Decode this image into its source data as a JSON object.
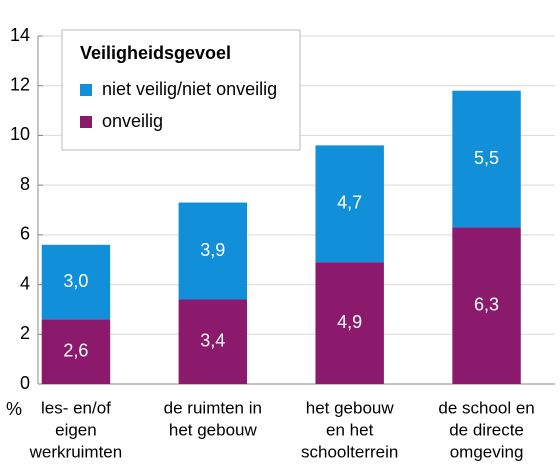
{
  "chart_data": {
    "type": "stacked_bar",
    "y_axis_label": "%",
    "categories": [
      [
        "les- en/of",
        "eigen",
        "werkruimten"
      ],
      [
        "de ruimten in",
        "het gebouw"
      ],
      [
        "het gebouw",
        "en het",
        "schoolterrein"
      ],
      [
        "de school en",
        "de directe",
        "omgeving"
      ]
    ],
    "series": [
      {
        "name": "onveilig",
        "color": "#8b1a6c",
        "values": [
          2.6,
          3.4,
          4.9,
          6.3
        ],
        "value_labels": [
          "2,6",
          "3,4",
          "4,9",
          "6,3"
        ]
      },
      {
        "name": "niet veilig/niet onveilig",
        "color": "#118fd8",
        "values": [
          3.0,
          3.9,
          4.7,
          5.5
        ],
        "value_labels": [
          "3,0",
          "3,9",
          "4,7",
          "5,5"
        ]
      }
    ],
    "legend_title": "Veiligheidsgevoel",
    "legend_position": "upper left",
    "ylim": [
      0,
      14
    ],
    "yticks": [
      0,
      2,
      4,
      6,
      8,
      10,
      12,
      14
    ],
    "grid": true
  }
}
